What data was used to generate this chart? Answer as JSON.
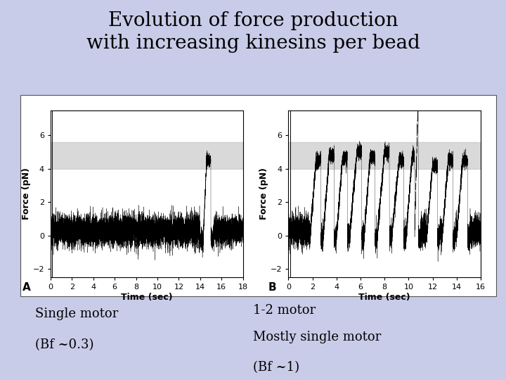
{
  "title_line1": "Evolution of force production",
  "title_line2": "with increasing kinesins per bead",
  "title_fontsize": 20,
  "bg_color": "#c8cce8",
  "panel_bg": "#ffffff",
  "gray_band_A": [
    4.0,
    5.6
  ],
  "gray_band_B": [
    4.0,
    5.6
  ],
  "gray_band_color": "#c0c0c0",
  "gray_band_alpha": 0.6,
  "xlabel": "Time (sec)",
  "ylabel": "Force (pN)",
  "label_A": "A",
  "label_B": "B",
  "text_left_1": "Single motor",
  "text_left_2": "(Bf ~0.3)",
  "text_right_1": "1-2 motor",
  "text_right_2": "Mostly single motor",
  "text_right_3": "(Bf ~1)",
  "annotation_fontsize": 13,
  "axis_label_fontsize": 9,
  "tick_fontsize": 8,
  "panel_A_xlim": [
    0,
    18
  ],
  "panel_A_ylim": [
    -2.5,
    7.5
  ],
  "panel_A_xticks": [
    0,
    2,
    4,
    6,
    8,
    10,
    12,
    14,
    16,
    18
  ],
  "panel_A_yticks": [
    -2,
    0,
    2,
    4,
    6
  ],
  "panel_B_xlim": [
    0,
    16
  ],
  "panel_B_ylim": [
    -2.5,
    7.5
  ],
  "panel_B_xticks": [
    0,
    2,
    4,
    6,
    8,
    10,
    12,
    14,
    16
  ],
  "panel_B_yticks": [
    -2,
    0,
    2,
    4,
    6
  ]
}
